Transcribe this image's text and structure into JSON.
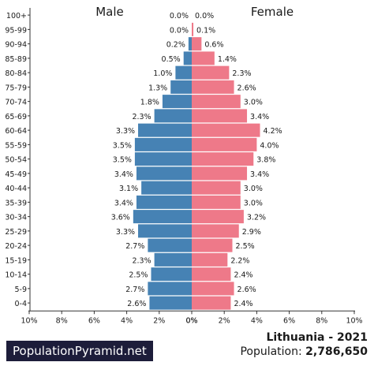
{
  "chart_data": {
    "type": "bar",
    "orientation": "horizontal-pyramid",
    "left_label": "Male",
    "right_label": "Female",
    "categories": [
      "100+",
      "95-99",
      "90-94",
      "85-89",
      "80-84",
      "75-79",
      "70-74",
      "65-69",
      "60-64",
      "55-59",
      "50-54",
      "45-49",
      "40-44",
      "35-39",
      "30-34",
      "25-29",
      "20-24",
      "15-19",
      "10-14",
      "5-9",
      "0-4"
    ],
    "series": [
      {
        "name": "Male",
        "color": "#4682b4",
        "values": [
          0.0,
          0.0,
          0.2,
          0.5,
          1.0,
          1.3,
          1.8,
          2.3,
          3.3,
          3.5,
          3.5,
          3.4,
          3.1,
          3.4,
          3.6,
          3.3,
          2.7,
          2.3,
          2.5,
          2.7,
          2.6
        ],
        "labels": [
          "0.0%",
          "0.0%",
          "0.2%",
          "0.5%",
          "1.0%",
          "1.3%",
          "1.8%",
          "2.3%",
          "3.3%",
          "3.5%",
          "3.5%",
          "3.4%",
          "3.1%",
          "3.4%",
          "3.6%",
          "3.3%",
          "2.7%",
          "2.3%",
          "2.5%",
          "2.7%",
          "2.6%"
        ]
      },
      {
        "name": "Female",
        "color": "#ee7989",
        "values": [
          0.0,
          0.1,
          0.6,
          1.4,
          2.3,
          2.6,
          3.0,
          3.4,
          4.2,
          4.0,
          3.8,
          3.4,
          3.0,
          3.0,
          3.2,
          2.9,
          2.5,
          2.2,
          2.4,
          2.6,
          2.4
        ],
        "labels": [
          "0.0%",
          "0.1%",
          "0.6%",
          "1.4%",
          "2.3%",
          "2.6%",
          "3.0%",
          "3.4%",
          "4.2%",
          "4.0%",
          "3.8%",
          "3.4%",
          "3.0%",
          "3.0%",
          "3.2%",
          "2.9%",
          "2.5%",
          "2.2%",
          "2.4%",
          "2.6%",
          "2.4%"
        ]
      }
    ],
    "xlim": [
      0,
      10
    ],
    "x_ticks_left": [
      "10%",
      "8%",
      "6%",
      "4%",
      "2%",
      "0%"
    ],
    "x_ticks_right": [
      "0%",
      "2%",
      "4%",
      "6%",
      "8%",
      "10%"
    ],
    "grid": false
  },
  "footer": {
    "brand": "PopulationPyramid.net",
    "country_year": "Lithuania - 2021",
    "population_label": "Population:",
    "population_value": "2,786,650"
  }
}
